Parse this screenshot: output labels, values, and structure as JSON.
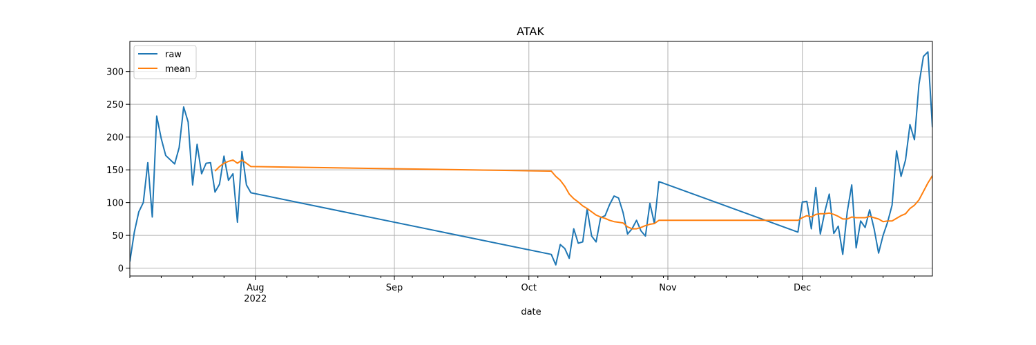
{
  "chart_data": {
    "type": "line",
    "title": "ATAK",
    "xlabel": "date",
    "ylabel": "",
    "x_axis_type": "date",
    "xlim": [
      "2022-07-04",
      "2022-12-29"
    ],
    "ylim": [
      -12,
      346
    ],
    "grid": true,
    "legend_position": "upper-left",
    "x_ticks_major": [
      {
        "date": "2022-08-01",
        "label": "Aug",
        "sublabel": "2022"
      },
      {
        "date": "2022-09-01",
        "label": "Sep",
        "sublabel": ""
      },
      {
        "date": "2022-10-01",
        "label": "Oct",
        "sublabel": ""
      },
      {
        "date": "2022-11-01",
        "label": "Nov",
        "sublabel": ""
      },
      {
        "date": "2022-12-01",
        "label": "Dec",
        "sublabel": ""
      }
    ],
    "x_ticks_minor": [
      "2022-07-04",
      "2022-07-11",
      "2022-07-18",
      "2022-07-25",
      "2022-08-08",
      "2022-08-15",
      "2022-08-22",
      "2022-08-29",
      "2022-09-05",
      "2022-09-12",
      "2022-09-19",
      "2022-09-26",
      "2022-10-03",
      "2022-10-10",
      "2022-10-17",
      "2022-10-24",
      "2022-10-31",
      "2022-11-07",
      "2022-11-14",
      "2022-11-21",
      "2022-11-28",
      "2022-12-05",
      "2022-12-12",
      "2022-12-19",
      "2022-12-26"
    ],
    "y_ticks": [
      0,
      50,
      100,
      150,
      200,
      250,
      300
    ],
    "series": [
      {
        "name": "raw",
        "color": "#1f77b4",
        "points": [
          [
            "2022-07-04",
            10
          ],
          [
            "2022-07-05",
            55
          ],
          [
            "2022-07-06",
            86
          ],
          [
            "2022-07-07",
            100
          ],
          [
            "2022-07-08",
            161
          ],
          [
            "2022-07-09",
            78
          ],
          [
            "2022-07-10",
            232
          ],
          [
            "2022-07-11",
            198
          ],
          [
            "2022-07-12",
            172
          ],
          [
            "2022-07-14",
            159
          ],
          [
            "2022-07-15",
            184
          ],
          [
            "2022-07-16",
            246
          ],
          [
            "2022-07-17",
            223
          ],
          [
            "2022-07-18",
            127
          ],
          [
            "2022-07-19",
            189
          ],
          [
            "2022-07-20",
            144
          ],
          [
            "2022-07-21",
            160
          ],
          [
            "2022-07-22",
            161
          ],
          [
            "2022-07-23",
            116
          ],
          [
            "2022-07-24",
            128
          ],
          [
            "2022-07-25",
            171
          ],
          [
            "2022-07-26",
            134
          ],
          [
            "2022-07-27",
            144
          ],
          [
            "2022-07-28",
            70
          ],
          [
            "2022-07-29",
            178
          ],
          [
            "2022-07-30",
            127
          ],
          [
            "2022-07-31",
            115
          ],
          [
            "2022-10-06",
            21
          ],
          [
            "2022-10-07",
            5
          ],
          [
            "2022-10-08",
            36
          ],
          [
            "2022-10-09",
            30
          ],
          [
            "2022-10-10",
            15
          ],
          [
            "2022-10-11",
            60
          ],
          [
            "2022-10-12",
            38
          ],
          [
            "2022-10-13",
            40
          ],
          [
            "2022-10-14",
            90
          ],
          [
            "2022-10-15",
            49
          ],
          [
            "2022-10-16",
            40
          ],
          [
            "2022-10-17",
            77
          ],
          [
            "2022-10-18",
            80
          ],
          [
            "2022-10-19",
            97
          ],
          [
            "2022-10-20",
            110
          ],
          [
            "2022-10-21",
            107
          ],
          [
            "2022-10-22",
            85
          ],
          [
            "2022-10-23",
            52
          ],
          [
            "2022-10-24",
            60
          ],
          [
            "2022-10-25",
            73
          ],
          [
            "2022-10-26",
            57
          ],
          [
            "2022-10-27",
            49
          ],
          [
            "2022-10-28",
            99
          ],
          [
            "2022-10-29",
            68
          ],
          [
            "2022-10-30",
            132
          ],
          [
            "2022-11-30",
            55
          ],
          [
            "2022-12-01",
            101
          ],
          [
            "2022-12-02",
            102
          ],
          [
            "2022-12-03",
            60
          ],
          [
            "2022-12-04",
            123
          ],
          [
            "2022-12-05",
            52
          ],
          [
            "2022-12-06",
            86
          ],
          [
            "2022-12-07",
            113
          ],
          [
            "2022-12-08",
            53
          ],
          [
            "2022-12-09",
            64
          ],
          [
            "2022-12-10",
            21
          ],
          [
            "2022-12-11",
            86
          ],
          [
            "2022-12-12",
            127
          ],
          [
            "2022-12-13",
            31
          ],
          [
            "2022-12-14",
            72
          ],
          [
            "2022-12-15",
            62
          ],
          [
            "2022-12-16",
            89
          ],
          [
            "2022-12-17",
            60
          ],
          [
            "2022-12-18",
            23
          ],
          [
            "2022-12-19",
            50
          ],
          [
            "2022-12-20",
            70
          ],
          [
            "2022-12-21",
            96
          ],
          [
            "2022-12-22",
            179
          ],
          [
            "2022-12-23",
            140
          ],
          [
            "2022-12-24",
            165
          ],
          [
            "2022-12-25",
            219
          ],
          [
            "2022-12-26",
            196
          ],
          [
            "2022-12-27",
            280
          ],
          [
            "2022-12-28",
            323
          ],
          [
            "2022-12-29",
            330
          ],
          [
            "2022-12-30",
            215
          ]
        ]
      },
      {
        "name": "mean",
        "color": "#ff7f0e",
        "points": [
          [
            "2022-07-23",
            148
          ],
          [
            "2022-07-24",
            155
          ],
          [
            "2022-07-25",
            160
          ],
          [
            "2022-07-26",
            163
          ],
          [
            "2022-07-27",
            165
          ],
          [
            "2022-07-28",
            160
          ],
          [
            "2022-07-29",
            165
          ],
          [
            "2022-07-30",
            160
          ],
          [
            "2022-07-31",
            155
          ],
          [
            "2022-10-06",
            148
          ],
          [
            "2022-10-07",
            140
          ],
          [
            "2022-10-08",
            134
          ],
          [
            "2022-10-09",
            125
          ],
          [
            "2022-10-10",
            113
          ],
          [
            "2022-10-11",
            106
          ],
          [
            "2022-10-12",
            101
          ],
          [
            "2022-10-13",
            95
          ],
          [
            "2022-10-14",
            91
          ],
          [
            "2022-10-15",
            86
          ],
          [
            "2022-10-16",
            81
          ],
          [
            "2022-10-17",
            78
          ],
          [
            "2022-10-18",
            76
          ],
          [
            "2022-10-19",
            73
          ],
          [
            "2022-10-20",
            71
          ],
          [
            "2022-10-21",
            70
          ],
          [
            "2022-10-22",
            69
          ],
          [
            "2022-10-23",
            63
          ],
          [
            "2022-10-24",
            60
          ],
          [
            "2022-10-25",
            60
          ],
          [
            "2022-10-26",
            62
          ],
          [
            "2022-10-27",
            65
          ],
          [
            "2022-10-28",
            67
          ],
          [
            "2022-10-29",
            68
          ],
          [
            "2022-10-30",
            73
          ],
          [
            "2022-11-30",
            73
          ],
          [
            "2022-12-01",
            77
          ],
          [
            "2022-12-02",
            80
          ],
          [
            "2022-12-03",
            78
          ],
          [
            "2022-12-04",
            82
          ],
          [
            "2022-12-05",
            83
          ],
          [
            "2022-12-06",
            83
          ],
          [
            "2022-12-07",
            84
          ],
          [
            "2022-12-08",
            82
          ],
          [
            "2022-12-09",
            79
          ],
          [
            "2022-12-10",
            75
          ],
          [
            "2022-12-11",
            75
          ],
          [
            "2022-12-12",
            78
          ],
          [
            "2022-12-13",
            77
          ],
          [
            "2022-12-14",
            77
          ],
          [
            "2022-12-15",
            77
          ],
          [
            "2022-12-16",
            79
          ],
          [
            "2022-12-17",
            77
          ],
          [
            "2022-12-18",
            75
          ],
          [
            "2022-12-19",
            71
          ],
          [
            "2022-12-20",
            72
          ],
          [
            "2022-12-21",
            72
          ],
          [
            "2022-12-22",
            76
          ],
          [
            "2022-12-23",
            80
          ],
          [
            "2022-12-24",
            83
          ],
          [
            "2022-12-25",
            91
          ],
          [
            "2022-12-26",
            96
          ],
          [
            "2022-12-27",
            104
          ],
          [
            "2022-12-28",
            117
          ],
          [
            "2022-12-29",
            130
          ],
          [
            "2022-12-30",
            141
          ]
        ]
      }
    ]
  }
}
